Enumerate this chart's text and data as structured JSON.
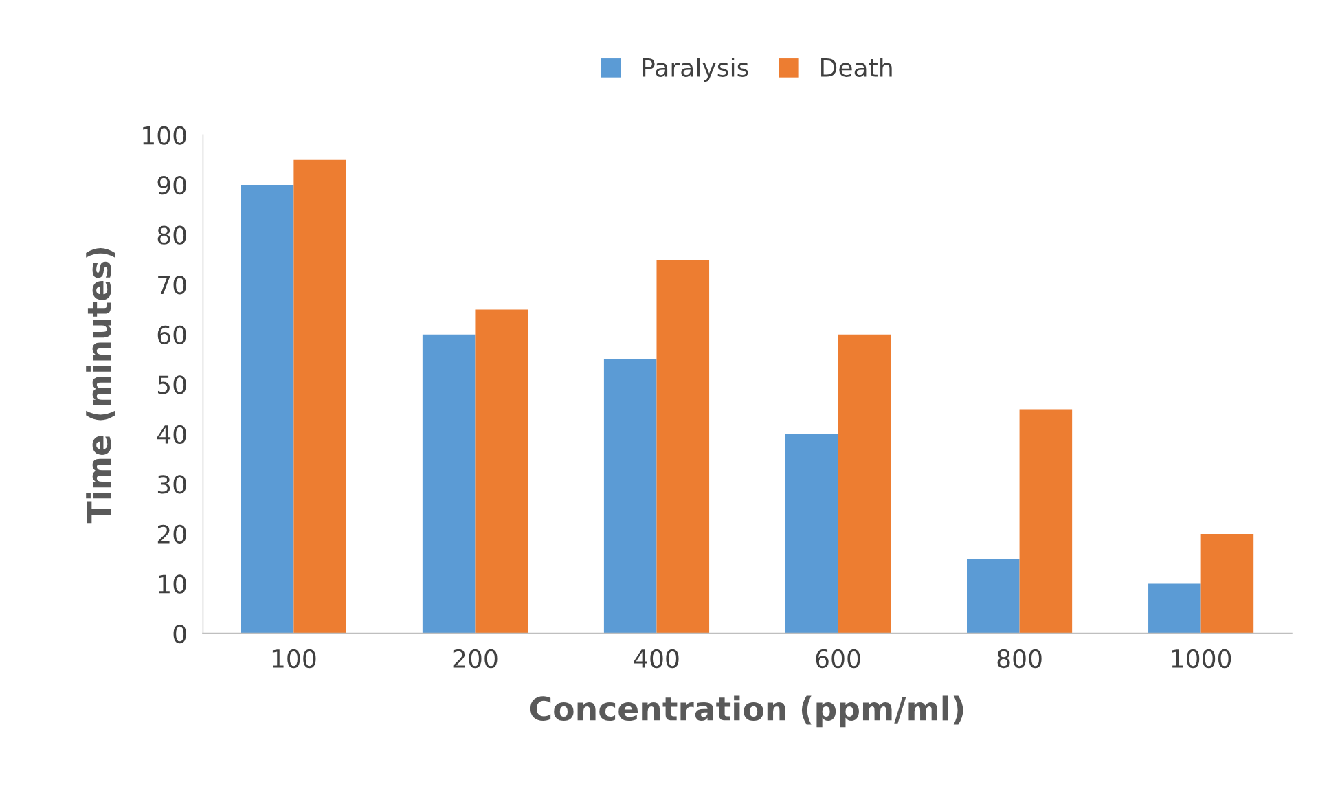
{
  "chart_data": {
    "type": "bar",
    "xlabel": "Concentration (ppm/ml)",
    "ylabel": "Time (minutes)",
    "categories": [
      "100",
      "200",
      "400",
      "600",
      "800",
      "1000"
    ],
    "series": [
      {
        "name": "Paralysis",
        "color": "#5b9bd5",
        "values": [
          90,
          60,
          55,
          40,
          15,
          10
        ]
      },
      {
        "name": "Death",
        "color": "#ed7d31",
        "values": [
          95,
          65,
          75,
          60,
          45,
          20
        ]
      }
    ],
    "ylim": [
      0,
      100
    ],
    "yticks": [
      0,
      10,
      20,
      30,
      40,
      50,
      60,
      70,
      80,
      90,
      100
    ],
    "grid": false,
    "legend": "top"
  }
}
